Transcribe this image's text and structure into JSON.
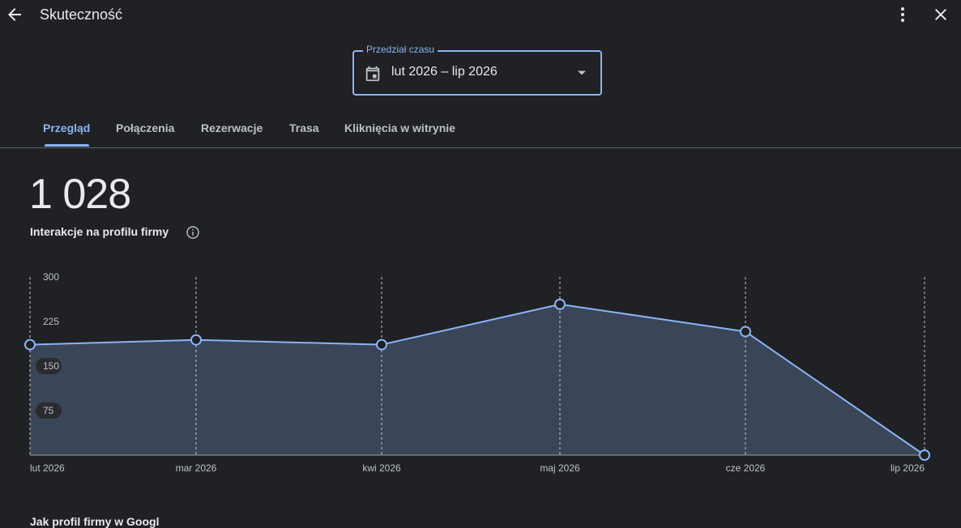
{
  "header": {
    "title": "Skuteczność",
    "back_icon": "arrow-back-icon",
    "more_icon": "more-vert-icon",
    "close_icon": "close-icon"
  },
  "range": {
    "label": "Przedział czasu",
    "value": "lut 2026 – lip 2026",
    "icon": "calendar-icon"
  },
  "tabs": [
    {
      "label": "Przegląd",
      "active": true
    },
    {
      "label": "Połączenia",
      "active": false
    },
    {
      "label": "Rezerwacje",
      "active": false
    },
    {
      "label": "Trasa",
      "active": false
    },
    {
      "label": "Kliknięcia w witrynie",
      "active": false
    }
  ],
  "metric": {
    "value": "1 028",
    "label": "Interakcje na profilu firmy"
  },
  "colors": {
    "accent": "#8ab4f8",
    "background": "#202124",
    "area_fill": "#3a4558"
  },
  "chart_data": {
    "type": "area",
    "x": [
      "lut 2026",
      "mar 2026",
      "kwi 2026",
      "maj 2026",
      "cze 2026",
      "lip 2026"
    ],
    "series": [
      {
        "values": [
          186,
          194,
          186,
          254,
          208,
          0
        ]
      }
    ],
    "ylim": [
      0,
      300
    ],
    "yticks": [
      "300",
      "225",
      "150",
      "75"
    ],
    "grid": "vertical dashed"
  },
  "bottom": {
    "partial_text": "Jak profil firmy w Googl"
  }
}
